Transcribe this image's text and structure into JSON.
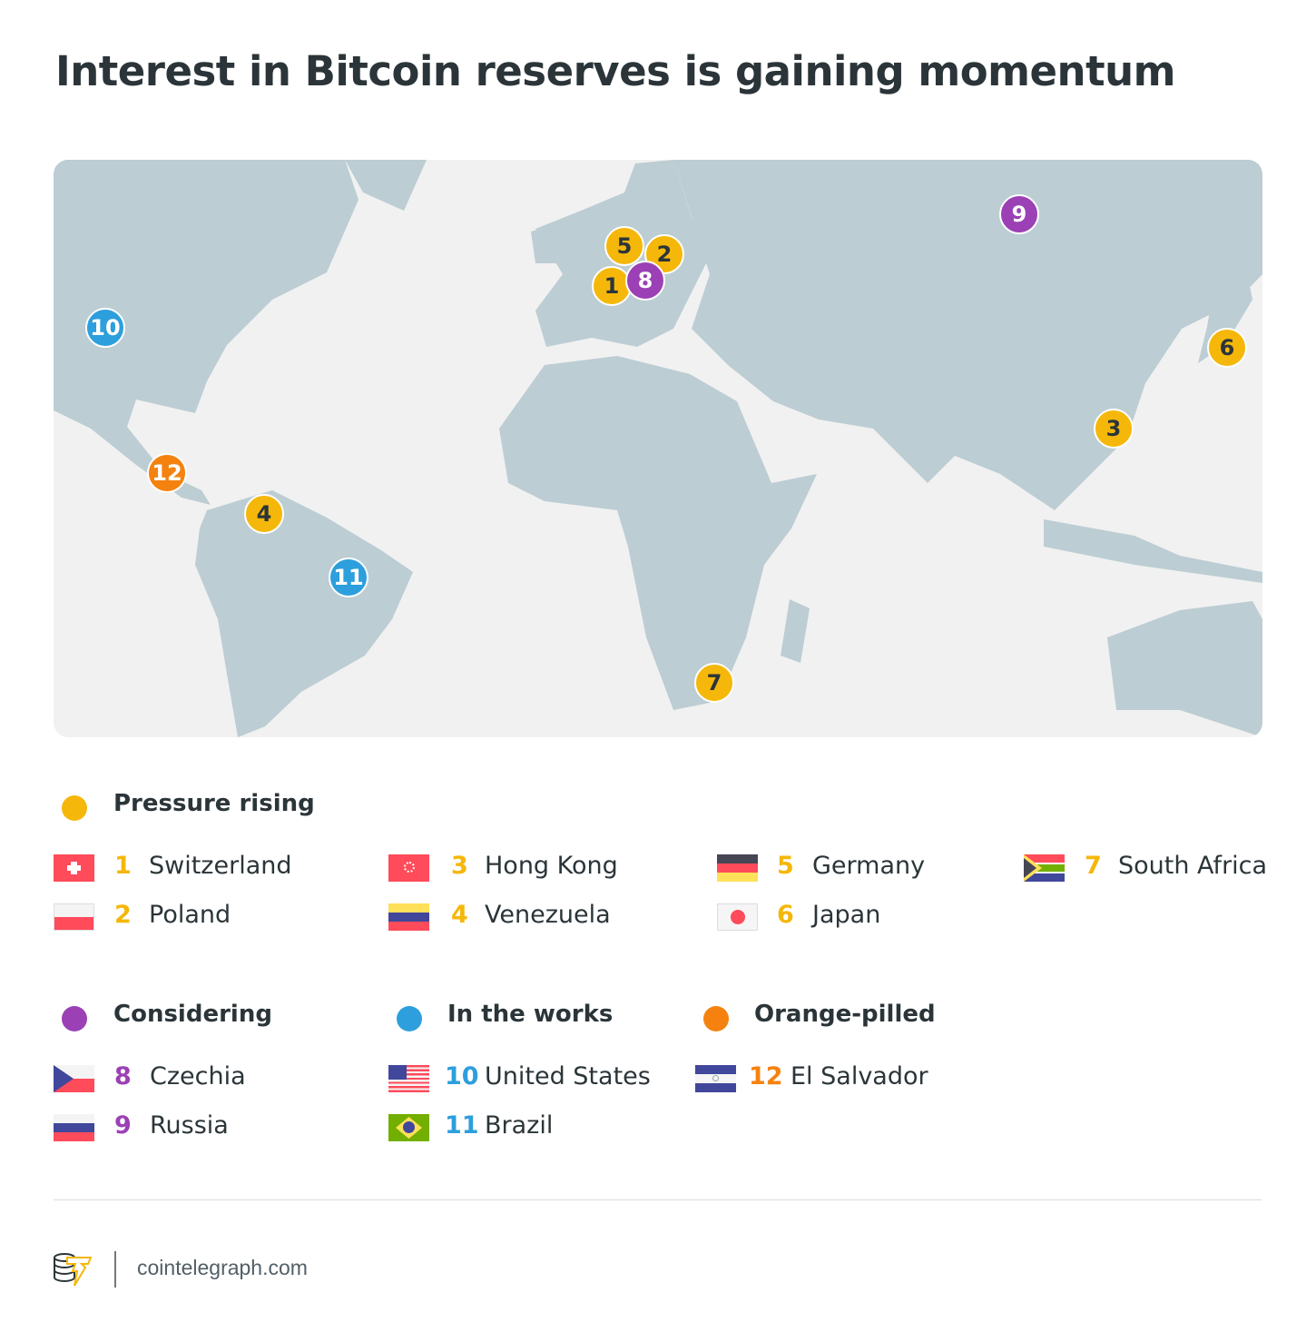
{
  "title": "Interest in Bitcoin reserves is gaining momentum",
  "colors": {
    "pressure": "#f5b70a",
    "considering": "#9b40b5",
    "works": "#2d9fdc",
    "orange": "#f5820f",
    "land": "#bccdd3",
    "sea": "#f1f1f1"
  },
  "map": {
    "markers": [
      {
        "n": "1",
        "country": "Switzerland",
        "group": "pressure"
      },
      {
        "n": "2",
        "country": "Poland",
        "group": "pressure"
      },
      {
        "n": "3",
        "country": "Hong Kong",
        "group": "pressure"
      },
      {
        "n": "4",
        "country": "Venezuela",
        "group": "pressure"
      },
      {
        "n": "5",
        "country": "Germany",
        "group": "pressure"
      },
      {
        "n": "6",
        "country": "Japan",
        "group": "pressure"
      },
      {
        "n": "7",
        "country": "South Africa",
        "group": "pressure"
      },
      {
        "n": "8",
        "country": "Czechia",
        "group": "considering"
      },
      {
        "n": "9",
        "country": "Russia",
        "group": "considering"
      },
      {
        "n": "10",
        "country": "United States",
        "group": "works"
      },
      {
        "n": "11",
        "country": "Brazil",
        "group": "works"
      },
      {
        "n": "12",
        "country": "El Salvador",
        "group": "orange"
      }
    ]
  },
  "legend": {
    "pressure": {
      "label": "Pressure rising"
    },
    "considering": {
      "label": "Considering"
    },
    "works": {
      "label": "In the works"
    },
    "orange": {
      "label": "Orange-pilled"
    }
  },
  "footer": {
    "site": "cointelegraph.com",
    "logo": "cointelegraph-logo"
  }
}
